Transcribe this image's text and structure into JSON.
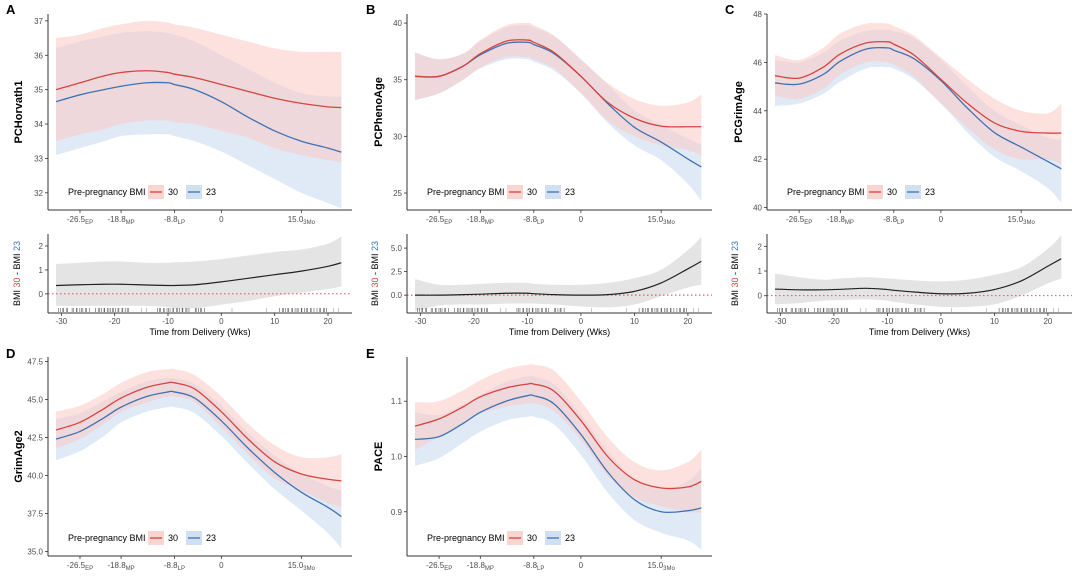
{
  "colors": {
    "bmi30": "#d7443f",
    "bmi23": "#3f72b5",
    "bmi30_band": "#f9c9c4",
    "bmi23_band": "#c5d8ee",
    "diff_line": "#222222",
    "diff_band": "#d9d9d9",
    "zero_line": "#e0403a"
  },
  "chart_data": [
    {
      "id": "A",
      "type": "line",
      "panel_label": "A",
      "ylabel": "PCHorvath1",
      "xlim": [
        -32.5,
        24.5
      ],
      "ylim": [
        31.5,
        37.2
      ],
      "yticks": [
        32,
        33,
        34,
        35,
        36,
        37
      ],
      "ytick_labels": [
        "32",
        "33",
        "34",
        "35",
        "36",
        "37"
      ],
      "xticks": [
        {
          "value": -26.5,
          "label": "-26.5",
          "sub": "EP"
        },
        {
          "value": -18.8,
          "label": "-18.8",
          "sub": "MP"
        },
        {
          "value": -8.8,
          "label": "-8.8",
          "sub": "LP"
        },
        {
          "value": 0,
          "label": "0",
          "sub": ""
        },
        {
          "value": 15.0,
          "label": "15.0",
          "sub": "3Mo"
        }
      ],
      "legend": {
        "title": "Pre-pregnancy BMI",
        "entries": [
          "30",
          "23"
        ],
        "position": "bottom-left"
      },
      "x": [
        -31,
        -26.5,
        -22,
        -18.8,
        -14,
        -10,
        -8.8,
        -5,
        0,
        5,
        10,
        15,
        20,
        22.5
      ],
      "series": [
        {
          "name": "30",
          "values": [
            35.0,
            35.2,
            35.4,
            35.5,
            35.55,
            35.5,
            35.45,
            35.35,
            35.15,
            34.95,
            34.75,
            34.6,
            34.5,
            34.48
          ],
          "upper": [
            36.5,
            36.6,
            36.8,
            36.9,
            37.0,
            36.95,
            36.9,
            36.8,
            36.6,
            36.4,
            36.2,
            36.1,
            36.1,
            36.1
          ],
          "lower": [
            33.5,
            33.7,
            33.85,
            34.0,
            34.1,
            34.1,
            34.05,
            34.0,
            33.8,
            33.6,
            33.3,
            33.1,
            32.95,
            32.9
          ]
        },
        {
          "name": "23",
          "values": [
            34.65,
            34.85,
            35.0,
            35.1,
            35.2,
            35.2,
            35.15,
            35.0,
            34.65,
            34.2,
            33.8,
            33.5,
            33.3,
            33.18
          ],
          "upper": [
            36.2,
            36.4,
            36.55,
            36.65,
            36.7,
            36.65,
            36.6,
            36.4,
            36.0,
            35.6,
            35.2,
            34.9,
            34.8,
            34.8
          ],
          "lower": [
            33.1,
            33.3,
            33.5,
            33.65,
            33.7,
            33.7,
            33.65,
            33.5,
            33.2,
            32.8,
            32.4,
            32.0,
            31.7,
            31.55
          ]
        }
      ],
      "diff": {
        "ylabel_parts": [
          "BMI ",
          "30",
          " - BMI ",
          "23"
        ],
        "xlabel": "Time from Delivery (Wks)",
        "ylim": [
          -0.8,
          2.5
        ],
        "yticks": [
          0,
          1,
          2
        ],
        "ytick_labels": [
          "0",
          "1",
          "2"
        ],
        "xticks": [
          -30,
          -20,
          -10,
          0,
          10,
          20
        ],
        "xtick_labels": [
          "-30",
          "-20",
          "-10",
          "0",
          "10",
          "20"
        ],
        "values": [
          0.35,
          0.38,
          0.4,
          0.4,
          0.37,
          0.35,
          0.35,
          0.38,
          0.5,
          0.65,
          0.8,
          0.95,
          1.15,
          1.3
        ],
        "upper": [
          1.25,
          1.3,
          1.35,
          1.35,
          1.3,
          1.3,
          1.32,
          1.35,
          1.45,
          1.6,
          1.75,
          1.85,
          2.1,
          2.4
        ],
        "lower": [
          -0.5,
          -0.5,
          -0.5,
          -0.5,
          -0.5,
          -0.55,
          -0.6,
          -0.6,
          -0.45,
          -0.3,
          -0.1,
          0.05,
          0.2,
          0.3
        ]
      }
    },
    {
      "id": "B",
      "type": "line",
      "panel_label": "B",
      "ylabel": "PCPhenoAge",
      "xlim": [
        -32.5,
        24.5
      ],
      "ylim": [
        23.5,
        40.8
      ],
      "yticks": [
        25,
        30,
        35,
        40
      ],
      "ytick_labels": [
        "25",
        "30",
        "35",
        "40"
      ],
      "xticks": [
        {
          "value": -26.5,
          "label": "-26.5",
          "sub": "EP"
        },
        {
          "value": -18.8,
          "label": "-18.8",
          "sub": "MP"
        },
        {
          "value": -8.8,
          "label": "-8.8",
          "sub": "LP"
        },
        {
          "value": 0,
          "label": "0",
          "sub": ""
        },
        {
          "value": 15.0,
          "label": "15.0",
          "sub": "3Mo"
        }
      ],
      "legend": {
        "title": "Pre-pregnancy BMI",
        "entries": [
          "30",
          "23"
        ],
        "position": "bottom-left"
      },
      "x": [
        -31,
        -26.5,
        -22,
        -18.8,
        -14,
        -10,
        -8.8,
        -5,
        0,
        5,
        10,
        15,
        20,
        22.5
      ],
      "series": [
        {
          "name": "30",
          "values": [
            35.3,
            35.3,
            36.2,
            37.3,
            38.4,
            38.5,
            38.3,
            37.4,
            35.3,
            33.0,
            31.6,
            30.9,
            30.85,
            30.85
          ],
          "upper": [
            37.4,
            36.8,
            37.3,
            38.5,
            39.8,
            40.0,
            39.8,
            38.9,
            36.8,
            34.7,
            33.3,
            32.7,
            33.0,
            33.7
          ],
          "lower": [
            33.2,
            33.8,
            35.0,
            36.1,
            37.0,
            37.0,
            36.8,
            36.0,
            33.8,
            31.4,
            30.0,
            29.2,
            28.8,
            28.3
          ]
        },
        {
          "name": "23",
          "values": [
            35.3,
            35.3,
            36.2,
            37.2,
            38.2,
            38.3,
            38.1,
            37.3,
            35.3,
            32.9,
            30.8,
            29.5,
            28.0,
            27.3
          ],
          "upper": [
            37.4,
            36.8,
            37.3,
            38.4,
            39.6,
            39.8,
            39.6,
            38.8,
            36.8,
            34.6,
            32.3,
            31.0,
            29.8,
            29.3
          ],
          "lower": [
            33.2,
            33.8,
            35.0,
            36.0,
            36.8,
            36.8,
            36.6,
            35.8,
            33.8,
            31.2,
            29.2,
            27.9,
            25.8,
            24.3
          ]
        }
      ],
      "diff": {
        "ylabel_parts": [
          "BMI ",
          "30",
          " - BMI ",
          "23"
        ],
        "xlabel": "Time from Delivery (Wks)",
        "ylim": [
          -1.9,
          6.5
        ],
        "yticks": [
          0,
          2.5,
          5.0
        ],
        "ytick_labels": [
          "0.0",
          "2.5",
          "5.0"
        ],
        "xticks": [
          -30,
          -20,
          -10,
          0,
          10,
          20
        ],
        "xtick_labels": [
          "-30",
          "-20",
          "-10",
          "0",
          "10",
          "20"
        ],
        "values": [
          0.0,
          0.0,
          0.05,
          0.1,
          0.2,
          0.2,
          0.15,
          0.05,
          0.0,
          0.05,
          0.4,
          1.3,
          2.8,
          3.6
        ],
        "upper": [
          1.7,
          1.1,
          1.1,
          1.2,
          1.3,
          1.3,
          1.2,
          1.1,
          1.1,
          1.3,
          1.8,
          2.7,
          4.8,
          6.2
        ],
        "lower": [
          -1.7,
          -1.1,
          -1.0,
          -1.0,
          -0.9,
          -0.9,
          -0.9,
          -1.0,
          -1.2,
          -1.3,
          -1.0,
          -0.1,
          0.8,
          1.1
        ]
      }
    },
    {
      "id": "C",
      "type": "line",
      "panel_label": "C",
      "ylabel": "PCGrimAge",
      "xlim": [
        -32.5,
        24.5
      ],
      "ylim": [
        39.9,
        48.0
      ],
      "yticks": [
        40,
        42,
        44,
        46,
        48
      ],
      "ytick_labels": [
        "40",
        "42",
        "44",
        "46",
        "48"
      ],
      "xticks": [
        {
          "value": -26.5,
          "label": "-26.5",
          "sub": "EP"
        },
        {
          "value": -18.8,
          "label": "-18.8",
          "sub": "MP"
        },
        {
          "value": -8.8,
          "label": "-8.8",
          "sub": "LP"
        },
        {
          "value": 0,
          "label": "0",
          "sub": ""
        },
        {
          "value": 15.0,
          "label": "15.0",
          "sub": "3Mo"
        }
      ],
      "legend": {
        "title": "Pre-pregnancy BMI",
        "entries": [
          "30",
          "23"
        ],
        "position": "bottom-left"
      },
      "x": [
        -31,
        -26.5,
        -22,
        -18.8,
        -14,
        -10,
        -8.8,
        -5,
        0,
        5,
        10,
        15,
        20,
        22.5
      ],
      "series": [
        {
          "name": "30",
          "values": [
            45.45,
            45.35,
            45.8,
            46.35,
            46.8,
            46.85,
            46.75,
            46.3,
            45.3,
            44.3,
            43.5,
            43.15,
            43.08,
            43.08
          ],
          "upper": [
            46.3,
            46.1,
            46.6,
            47.2,
            47.6,
            47.6,
            47.5,
            47.1,
            46.2,
            45.3,
            44.5,
            44.0,
            43.9,
            44.3
          ],
          "lower": [
            44.6,
            44.5,
            44.9,
            45.5,
            46.0,
            46.0,
            45.9,
            45.4,
            44.3,
            43.3,
            42.4,
            42.0,
            42.0,
            41.8
          ]
        },
        {
          "name": "23",
          "values": [
            45.15,
            45.1,
            45.5,
            46.05,
            46.55,
            46.6,
            46.5,
            46.15,
            45.25,
            44.1,
            43.1,
            42.5,
            41.9,
            41.6
          ],
          "upper": [
            46.1,
            46.0,
            46.4,
            46.9,
            47.3,
            47.35,
            47.3,
            47.0,
            46.1,
            45.0,
            44.0,
            43.4,
            42.9,
            42.8
          ],
          "lower": [
            44.2,
            44.3,
            44.7,
            45.2,
            45.75,
            45.8,
            45.75,
            45.3,
            44.3,
            43.1,
            42.1,
            41.5,
            40.8,
            40.2
          ]
        }
      ],
      "diff": {
        "ylabel_parts": [
          "BMI ",
          "30",
          " - BMI ",
          "23"
        ],
        "xlabel": "Time from Delivery (Wks)",
        "ylim": [
          -0.7,
          2.5
        ],
        "yticks": [
          0,
          1,
          2
        ],
        "ytick_labels": [
          "0",
          "1",
          "2"
        ],
        "xticks": [
          -30,
          -20,
          -10,
          0,
          10,
          20
        ],
        "xtick_labels": [
          "-30",
          "-20",
          "-10",
          "0",
          "10",
          "20"
        ],
        "values": [
          0.27,
          0.24,
          0.24,
          0.26,
          0.3,
          0.25,
          0.22,
          0.15,
          0.08,
          0.1,
          0.25,
          0.6,
          1.2,
          1.5
        ],
        "upper": [
          0.9,
          0.75,
          0.65,
          0.7,
          0.75,
          0.7,
          0.68,
          0.62,
          0.58,
          0.65,
          0.85,
          1.15,
          1.9,
          2.45
        ],
        "lower": [
          -0.35,
          -0.3,
          -0.2,
          -0.18,
          -0.15,
          -0.2,
          -0.25,
          -0.35,
          -0.45,
          -0.45,
          -0.35,
          0.0,
          0.5,
          0.7
        ]
      }
    },
    {
      "id": "D",
      "type": "line",
      "panel_label": "D",
      "ylabel": "GrimAge2",
      "xlim": [
        -32.5,
        24.5
      ],
      "ylim": [
        34.7,
        47.8
      ],
      "yticks": [
        35.0,
        37.5,
        40.0,
        42.5,
        45.0,
        47.5
      ],
      "ytick_labels": [
        "35.0",
        "37.5",
        "40.0",
        "42.5",
        "45.0",
        "47.5"
      ],
      "xticks": [
        {
          "value": -26.5,
          "label": "-26.5",
          "sub": "EP"
        },
        {
          "value": -18.8,
          "label": "-18.8",
          "sub": "MP"
        },
        {
          "value": -8.8,
          "label": "-8.8",
          "sub": "LP"
        },
        {
          "value": 0,
          "label": "0",
          "sub": ""
        },
        {
          "value": 15.0,
          "label": "15.0",
          "sub": "3Mo"
        }
      ],
      "legend": {
        "title": "Pre-pregnancy BMI",
        "entries": [
          "30",
          "23"
        ],
        "position": "bottom-left"
      },
      "x": [
        -31,
        -26.5,
        -22,
        -18.8,
        -14,
        -10,
        -8.8,
        -5,
        0,
        5,
        10,
        15,
        20,
        22.5
      ],
      "series": [
        {
          "name": "30",
          "values": [
            43.0,
            43.5,
            44.4,
            45.1,
            45.8,
            46.1,
            46.1,
            45.7,
            44.2,
            42.4,
            40.9,
            40.1,
            39.75,
            39.65
          ],
          "upper": [
            44.2,
            44.6,
            45.4,
            46.1,
            46.8,
            47.0,
            47.0,
            46.6,
            45.2,
            43.4,
            42.0,
            41.2,
            41.2,
            41.4
          ],
          "lower": [
            41.8,
            42.4,
            43.4,
            44.2,
            44.8,
            45.2,
            45.2,
            44.8,
            43.2,
            41.4,
            39.8,
            39.0,
            38.2,
            37.9
          ]
        },
        {
          "name": "23",
          "values": [
            42.4,
            42.9,
            43.8,
            44.5,
            45.2,
            45.5,
            45.5,
            45.1,
            43.6,
            41.8,
            40.2,
            38.9,
            37.9,
            37.3
          ],
          "upper": [
            43.7,
            44.1,
            44.9,
            45.5,
            46.2,
            46.4,
            46.4,
            46.0,
            44.6,
            42.8,
            41.3,
            40.1,
            39.3,
            39.0
          ],
          "lower": [
            41.0,
            41.6,
            42.6,
            43.5,
            44.2,
            44.5,
            44.5,
            44.1,
            42.6,
            40.8,
            39.1,
            37.7,
            36.2,
            35.2
          ]
        }
      ]
    },
    {
      "id": "E",
      "type": "line",
      "panel_label": "E",
      "ylabel": "PACE",
      "xlim": [
        -32.5,
        24.5
      ],
      "ylim": [
        0.82,
        1.18
      ],
      "yticks": [
        0.9,
        1.0,
        1.1
      ],
      "ytick_labels": [
        "0.9",
        "1.0",
        "1.1"
      ],
      "xticks": [
        {
          "value": -26.5,
          "label": "-26.5",
          "sub": "EP"
        },
        {
          "value": -18.8,
          "label": "-18.8",
          "sub": "MP"
        },
        {
          "value": -8.8,
          "label": "-8.8",
          "sub": "LP"
        },
        {
          "value": 0,
          "label": "0",
          "sub": ""
        },
        {
          "value": 15.0,
          "label": "15.0",
          "sub": "3Mo"
        }
      ],
      "legend": {
        "title": "Pre-pregnancy BMI",
        "entries": [
          "30",
          "23"
        ],
        "position": "bottom-left"
      },
      "x": [
        -31,
        -26.5,
        -22,
        -18.8,
        -14,
        -10,
        -8.8,
        -5,
        0,
        5,
        10,
        15,
        20,
        22.5
      ],
      "series": [
        {
          "name": "30",
          "values": [
            1.055,
            1.068,
            1.09,
            1.108,
            1.124,
            1.131,
            1.131,
            1.118,
            1.065,
            1.0,
            0.958,
            0.943,
            0.945,
            0.955
          ],
          "upper": [
            1.098,
            1.1,
            1.12,
            1.138,
            1.158,
            1.166,
            1.166,
            1.155,
            1.1,
            1.035,
            0.99,
            0.975,
            0.99,
            1.012
          ],
          "lower": [
            1.012,
            1.036,
            1.06,
            1.078,
            1.09,
            1.096,
            1.096,
            1.082,
            1.03,
            0.965,
            0.926,
            0.91,
            0.9,
            0.898
          ]
        },
        {
          "name": "23",
          "values": [
            1.031,
            1.036,
            1.06,
            1.08,
            1.1,
            1.11,
            1.11,
            1.095,
            1.04,
            0.972,
            0.922,
            0.9,
            0.902,
            0.907
          ],
          "upper": [
            1.08,
            1.075,
            1.094,
            1.112,
            1.135,
            1.145,
            1.145,
            1.13,
            1.075,
            1.01,
            0.96,
            0.94,
            0.955,
            0.98
          ],
          "lower": [
            0.983,
            0.997,
            1.025,
            1.045,
            1.065,
            1.072,
            1.072,
            1.058,
            1.003,
            0.935,
            0.885,
            0.862,
            0.848,
            0.832
          ]
        }
      ]
    }
  ]
}
